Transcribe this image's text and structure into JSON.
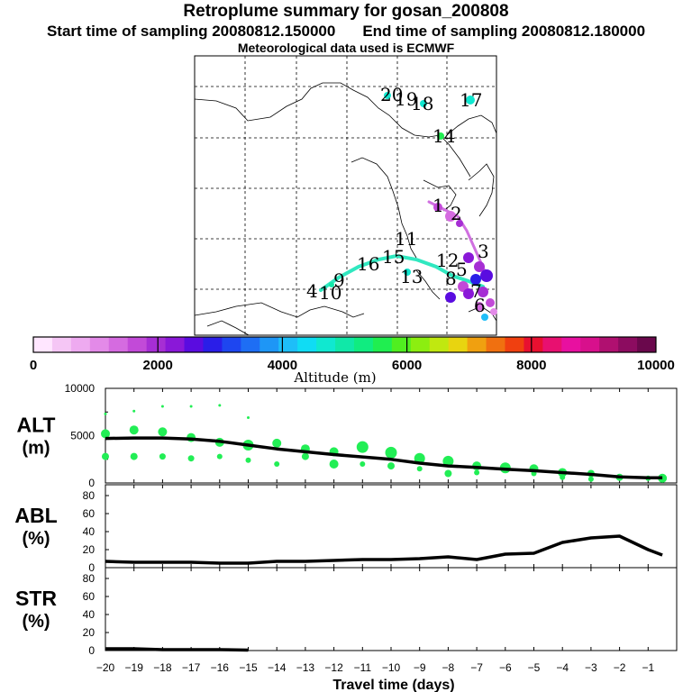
{
  "header": {
    "title": "Retroplume summary for gosan_200808",
    "start_label": "Start time of sampling 20080812.150000",
    "end_label": "End time of sampling 20080812.180000",
    "met_label": "Meteorological data used is ECMWF"
  },
  "map": {
    "labels": [
      "20",
      "19",
      "18",
      "17",
      "14",
      "1",
      "2",
      "16",
      "15",
      "11",
      "13",
      "12",
      "3",
      "5",
      "4",
      "10",
      "9",
      "8",
      "7",
      "6"
    ]
  },
  "colorbar": {
    "tick_labels": [
      "0",
      "2000",
      "4000",
      "6000",
      "8000",
      "10000"
    ],
    "axis_label": "Altitude (m)",
    "colors": [
      "#ffe6ff",
      "#f5c6f5",
      "#eeaaf0",
      "#e38ae8",
      "#d56be0",
      "#c24ad8",
      "#a62ed4",
      "#8a18d8",
      "#5a0ce0",
      "#2a1ee8",
      "#1e46f0",
      "#1e6ef4",
      "#1e96f6",
      "#1ebef8",
      "#10dcf4",
      "#10e8d0",
      "#10e8a8",
      "#10ec80",
      "#20ee50",
      "#50ee20",
      "#8cee10",
      "#c0e810",
      "#e8d410",
      "#f0a010",
      "#f07010",
      "#f04010",
      "#e81030",
      "#e81070",
      "#e810a0",
      "#d8108c",
      "#b01070",
      "#8c0c60",
      "#6a084c"
    ]
  },
  "chart_data": [
    {
      "type": "scatter+line",
      "panel_label": "ALT\n(m)",
      "label_top": "ALT",
      "label_bottom": "(m)",
      "ylim": [
        0,
        10000
      ],
      "yticks": [
        "0",
        "5000",
        "10000"
      ],
      "x": [
        -20,
        -19,
        -18,
        -17,
        -16,
        -15,
        -14,
        -13,
        -12,
        -11,
        -10,
        -9,
        -8,
        -7,
        -6,
        -5,
        -4,
        -3,
        -2,
        -1,
        -0.5
      ],
      "line_series": [
        4700,
        4750,
        4750,
        4650,
        4400,
        4000,
        3600,
        3300,
        3000,
        2750,
        2500,
        2100,
        1800,
        1650,
        1450,
        1300,
        1100,
        900,
        650,
        550,
        550
      ],
      "cluster_points": [
        {
          "x": -20,
          "y": 5200,
          "s": 5
        },
        {
          "x": -20,
          "y": 2800,
          "s": 4
        },
        {
          "x": -20,
          "y": 7300,
          "s": 1.5
        },
        {
          "x": -19,
          "y": 5600,
          "s": 5
        },
        {
          "x": -19,
          "y": 2800,
          "s": 4
        },
        {
          "x": -19,
          "y": 7600,
          "s": 1.5
        },
        {
          "x": -18,
          "y": 5400,
          "s": 5
        },
        {
          "x": -18,
          "y": 2800,
          "s": 3.5
        },
        {
          "x": -18,
          "y": 8100,
          "s": 1.5
        },
        {
          "x": -17,
          "y": 4800,
          "s": 5
        },
        {
          "x": -17,
          "y": 2600,
          "s": 3.5
        },
        {
          "x": -17,
          "y": 8100,
          "s": 1.5
        },
        {
          "x": -16,
          "y": 4300,
          "s": 5
        },
        {
          "x": -16,
          "y": 2800,
          "s": 3
        },
        {
          "x": -16,
          "y": 8200,
          "s": 1.5
        },
        {
          "x": -15,
          "y": 4000,
          "s": 6
        },
        {
          "x": -15,
          "y": 2400,
          "s": 3
        },
        {
          "x": -15,
          "y": 6900,
          "s": 1.5
        },
        {
          "x": -14,
          "y": 4200,
          "s": 5
        },
        {
          "x": -14,
          "y": 2000,
          "s": 3
        },
        {
          "x": -13,
          "y": 3600,
          "s": 5
        },
        {
          "x": -13,
          "y": 2800,
          "s": 4
        },
        {
          "x": -12,
          "y": 3300,
          "s": 5
        },
        {
          "x": -12,
          "y": 2000,
          "s": 5
        },
        {
          "x": -11,
          "y": 3800,
          "s": 6.5
        },
        {
          "x": -11,
          "y": 2000,
          "s": 3
        },
        {
          "x": -10,
          "y": 3200,
          "s": 6.5
        },
        {
          "x": -10,
          "y": 1800,
          "s": 4
        },
        {
          "x": -9,
          "y": 2600,
          "s": 6
        },
        {
          "x": -9,
          "y": 1500,
          "s": 3
        },
        {
          "x": -8,
          "y": 2300,
          "s": 6
        },
        {
          "x": -8,
          "y": 1000,
          "s": 4
        },
        {
          "x": -7,
          "y": 1800,
          "s": 5
        },
        {
          "x": -7,
          "y": 1100,
          "s": 3
        },
        {
          "x": -6,
          "y": 1600,
          "s": 6
        },
        {
          "x": -5,
          "y": 1500,
          "s": 5
        },
        {
          "x": -5,
          "y": 1000,
          "s": 3
        },
        {
          "x": -4,
          "y": 1100,
          "s": 5
        },
        {
          "x": -4,
          "y": 600,
          "s": 3
        },
        {
          "x": -3,
          "y": 1000,
          "s": 4
        },
        {
          "x": -3,
          "y": 400,
          "s": 3
        },
        {
          "x": -2,
          "y": 600,
          "s": 4
        },
        {
          "x": -1,
          "y": 500,
          "s": 3
        },
        {
          "x": -0.5,
          "y": 500,
          "s": 5
        }
      ]
    },
    {
      "type": "line",
      "label_top": "ABL",
      "label_bottom": "(%)",
      "ylim": [
        0,
        90
      ],
      "yticks": [
        "0",
        "20",
        "40",
        "60",
        "80"
      ],
      "x": [
        -20,
        -19,
        -18,
        -17,
        -16,
        -15,
        -14,
        -13,
        -12,
        -11,
        -10,
        -9,
        -8,
        -7,
        -6,
        -5,
        -4,
        -3,
        -2,
        -1,
        -0.5
      ],
      "values": [
        7,
        6,
        6,
        6,
        5,
        5,
        7,
        7,
        8,
        9,
        9,
        10,
        12,
        9,
        15,
        16,
        28,
        33,
        35,
        20,
        14
      ]
    },
    {
      "type": "line",
      "label_top": "STR",
      "label_bottom": "(%)",
      "ylim": [
        0,
        90
      ],
      "yticks": [
        "0",
        "20",
        "40",
        "60",
        "80"
      ],
      "x": [
        -20,
        -19,
        -18,
        -17,
        -16,
        -15
      ],
      "values": [
        2,
        2,
        1,
        1,
        1,
        0.5
      ]
    }
  ],
  "xaxis": {
    "xlim": [
      -20,
      0
    ],
    "ticks": [
      -20,
      -19,
      -18,
      -17,
      -16,
      -15,
      -14,
      -13,
      -12,
      -11,
      -10,
      -9,
      -8,
      -7,
      -6,
      -5,
      -4,
      -3,
      -2,
      -1
    ],
    "tick_labels": [
      "−20",
      "−19",
      "−18",
      "−17",
      "−16",
      "−15",
      "−14",
      "−13",
      "−12",
      "−11",
      "−10",
      "−9",
      "−8",
      "−7",
      "−6",
      "−5",
      "−4",
      "−3",
      "−2",
      "−1"
    ],
    "label": "Travel time (days)"
  },
  "colors": {
    "points": "#22ee55",
    "line": "#000000"
  }
}
